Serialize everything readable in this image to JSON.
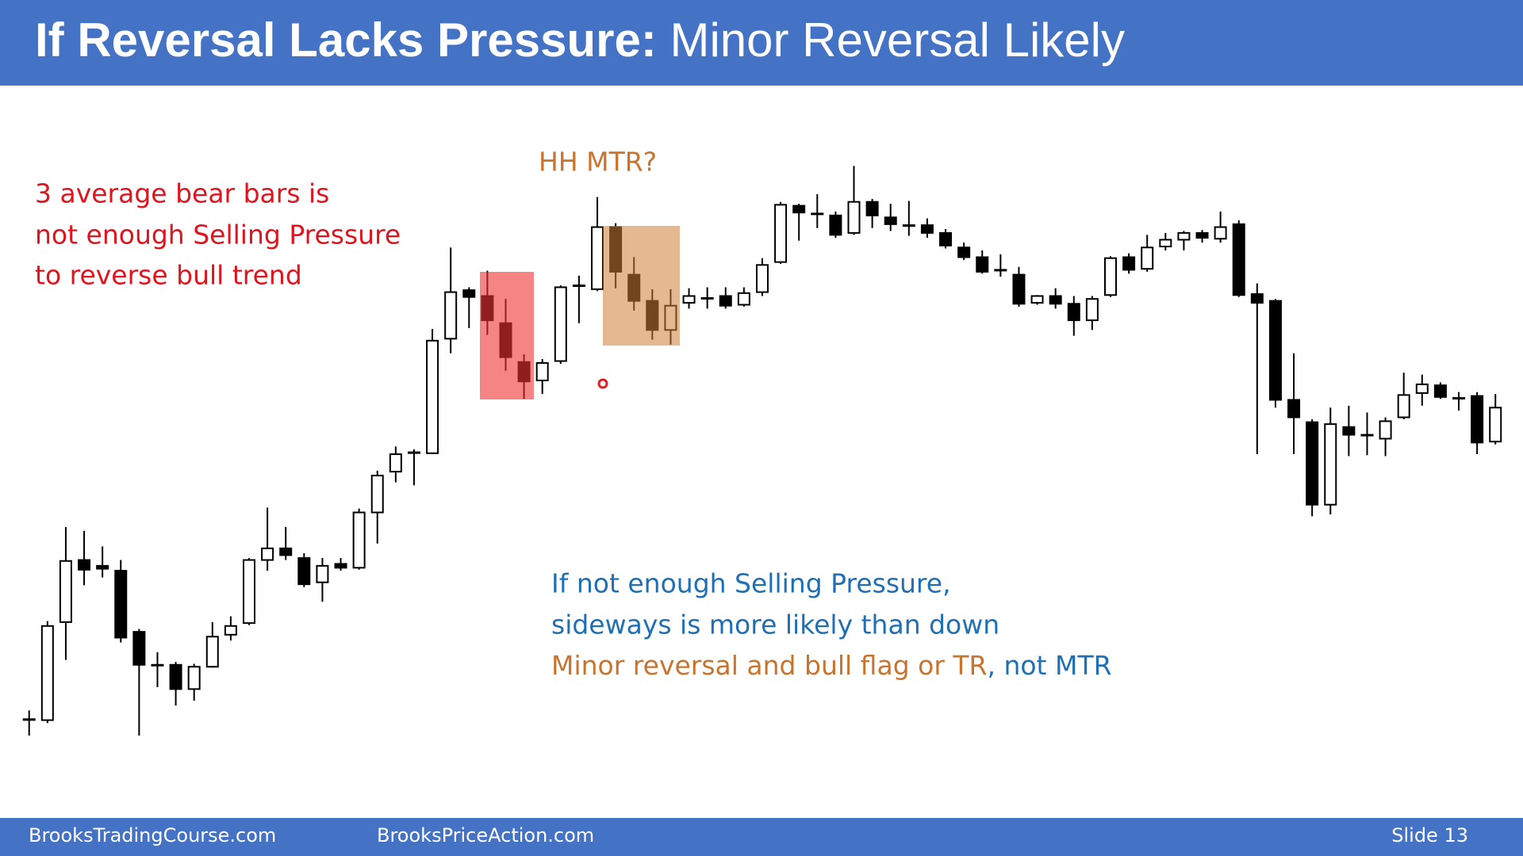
{
  "header": {
    "title_bold": "If Reversal Lacks Pressure:",
    "title_rest": " Minor Reversal Likely"
  },
  "annotations": {
    "left": [
      "3 average bear bars is",
      "not enough Selling Pressure",
      "to reverse bull trend"
    ],
    "top": "HH MTR?",
    "bottom": [
      "If not enough Selling Pressure,",
      "sideways is more likely than down"
    ],
    "bottom_last_orange": "Minor reversal and bull flag or TR",
    "bottom_last_blue": ", not MTR"
  },
  "footer": {
    "left": "BrooksTradingCourse.com",
    "middle": "BrooksPriceAction.com",
    "right": "Slide  13"
  },
  "chart_data": {
    "type": "candlestick",
    "ylim": [
      0,
      800
    ],
    "bull_color": "#ffffff",
    "bear_color": "#000000",
    "open": [
      59,
      58,
      159,
      223,
      217,
      212,
      149,
      115,
      115,
      90,
      113,
      146,
      158,
      223,
      235,
      225,
      200,
      219,
      215,
      272,
      314,
      334,
      333,
      451,
      501,
      495,
      467,
      427,
      408,
      428,
      506,
      502,
      566,
      517,
      490,
      460,
      488,
      493,
      495,
      486,
      499,
      530,
      588,
      580,
      578,
      560,
      592,
      576,
      568,
      568,
      560,
      545,
      535,
      522,
      517,
      488,
      495,
      487,
      470,
      496,
      535,
      523,
      546,
      553,
      560,
      554,
      569,
      497,
      490,
      388,
      365,
      280,
      360,
      352,
      348,
      370,
      395,
      403,
      390,
      392,
      345
    ],
    "high": [
      68,
      160,
      257,
      253,
      237,
      223,
      152,
      128,
      118,
      116,
      159,
      165,
      225,
      277,
      257,
      230,
      225,
      225,
      276,
      315,
      340,
      337,
      461,
      545,
      504,
      521,
      492,
      435,
      430,
      506,
      516,
      597,
      570,
      535,
      502,
      502,
      503,
      504,
      504,
      504,
      534,
      592,
      590,
      600,
      582,
      629,
      595,
      590,
      593,
      575,
      564,
      550,
      542,
      538,
      525,
      496,
      503,
      495,
      495,
      536,
      539,
      558,
      560,
      562,
      563,
      582,
      573,
      508,
      492,
      436,
      368,
      380,
      382,
      375,
      370,
      416,
      414,
      406,
      396,
      396,
      394
    ],
    "low": [
      42,
      55,
      120,
      197,
      205,
      138,
      42,
      92,
      73,
      78,
      112,
      140,
      156,
      212,
      223,
      195,
      180,
      212,
      213,
      240,
      303,
      300,
      332,
      436,
      462,
      455,
      418,
      389,
      394,
      425,
      467,
      500,
      503,
      480,
      450,
      445,
      482,
      482,
      482,
      484,
      495,
      528,
      552,
      565,
      555,
      558,
      565,
      562,
      557,
      555,
      544,
      532,
      518,
      515,
      484,
      486,
      482,
      454,
      460,
      494,
      518,
      520,
      542,
      542,
      550,
      550,
      494,
      332,
      380,
      332,
      268,
      270,
      330,
      331,
      330,
      368,
      382,
      389,
      377,
      332,
      342
    ],
    "close": [
      59,
      155,
      222,
      213,
      214,
      143,
      115,
      115,
      90,
      113,
      144,
      155,
      223,
      235,
      228,
      198,
      217,
      215,
      272,
      310,
      332,
      334,
      449,
      499,
      494,
      470,
      432,
      407,
      426,
      504,
      506,
      566,
      520,
      490,
      460,
      485,
      495,
      493,
      485,
      498,
      527,
      589,
      581,
      580,
      558,
      592,
      578,
      569,
      568,
      560,
      547,
      535,
      520,
      522,
      487,
      495,
      487,
      470,
      492,
      534,
      522,
      545,
      553,
      560,
      555,
      566,
      496,
      488,
      388,
      370,
      280,
      363,
      352,
      352,
      366,
      393,
      404,
      391,
      390,
      344,
      380
    ]
  }
}
